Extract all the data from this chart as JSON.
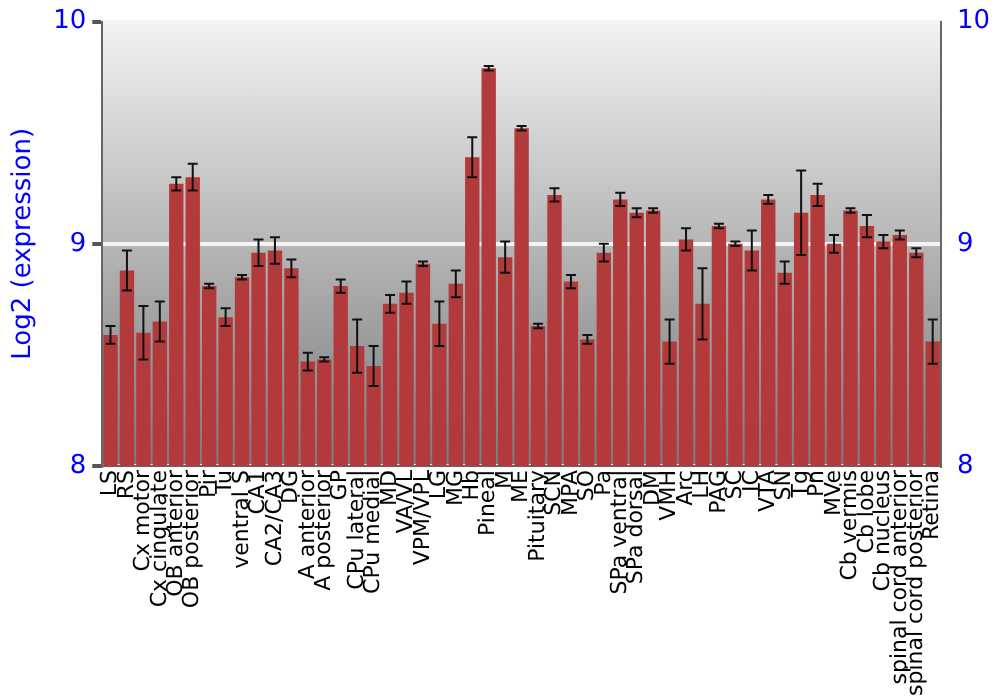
{
  "chart_data": {
    "type": "bar",
    "ylabel": "Log2 (expression)",
    "categories": [
      "LS",
      "RS",
      "Cx motor",
      "Cx cingulate",
      "OB anterior",
      "OB posterior",
      "Pir",
      "Tu",
      "ventral S",
      "CA1",
      "CA2/CA3",
      "DG",
      "A anterior",
      "A posterior",
      "GP",
      "CPu lateral",
      "CPu medial",
      "MD",
      "VA/VL",
      "VPM/VPL",
      "LG",
      "MG",
      "Hb",
      "Pineal",
      "M",
      "ME",
      "Pituitary",
      "SCN",
      "MPA",
      "SO",
      "Pa",
      "SPa ventral",
      "SPa dorsal",
      "DM",
      "VMH",
      "Arc",
      "LH",
      "PAG",
      "SC",
      "IC",
      "VTA",
      "SN",
      "Tg",
      "Pn",
      "MVe",
      "Cb vermis",
      "Cb lobe",
      "Cb nucleus",
      "spinal cord anterior",
      "spinal cord posterior",
      "Retina"
    ],
    "values": [
      8.59,
      8.88,
      8.6,
      8.65,
      9.27,
      9.3,
      8.81,
      8.67,
      8.85,
      8.96,
      8.97,
      8.89,
      8.47,
      8.48,
      8.81,
      8.54,
      8.45,
      8.73,
      8.78,
      8.91,
      8.64,
      8.82,
      9.39,
      9.79,
      8.94,
      9.52,
      8.63,
      9.22,
      8.83,
      8.57,
      8.96,
      9.2,
      9.14,
      9.15,
      8.56,
      9.02,
      8.73,
      9.08,
      9.0,
      8.97,
      9.2,
      8.87,
      9.14,
      9.22,
      9.0,
      9.15,
      9.08,
      9.01,
      9.04,
      8.96,
      8.56
    ],
    "errors": [
      0.04,
      0.09,
      0.12,
      0.09,
      0.03,
      0.06,
      0.01,
      0.04,
      0.01,
      0.06,
      0.06,
      0.04,
      0.04,
      0.01,
      0.03,
      0.12,
      0.09,
      0.04,
      0.05,
      0.01,
      0.1,
      0.06,
      0.09,
      0.01,
      0.07,
      0.01,
      0.01,
      0.03,
      0.03,
      0.02,
      0.04,
      0.03,
      0.02,
      0.01,
      0.1,
      0.05,
      0.16,
      0.01,
      0.01,
      0.09,
      0.02,
      0.05,
      0.19,
      0.05,
      0.04,
      0.01,
      0.05,
      0.03,
      0.02,
      0.02,
      0.1
    ],
    "color": "#b23a3a",
    "ylim": [
      8,
      10
    ],
    "yticks": [
      8,
      9,
      10
    ],
    "y2lim": [
      8,
      10
    ],
    "y2ticks": [
      8,
      9,
      10
    ],
    "grid": "y"
  }
}
